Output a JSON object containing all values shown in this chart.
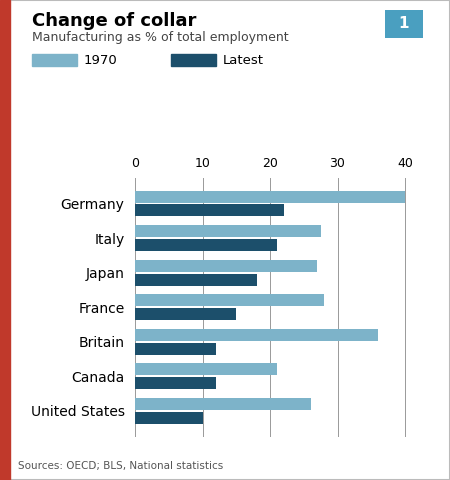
{
  "title": "Change of collar",
  "subtitle": "Manufacturing as % of total employment",
  "source": "Sources: OECD; BLS, National statistics",
  "legend_1970": "1970",
  "legend_latest": "Latest",
  "color_1970": "#7db3c9",
  "color_latest": "#1c4f6b",
  "color_border_left": "#c0392b",
  "color_num_box": "#4a9fc0",
  "color_outline": "#cccccc",
  "categories": [
    "Germany",
    "Italy",
    "Japan",
    "France",
    "Britain",
    "Canada",
    "United States"
  ],
  "values_1970": [
    40,
    27.5,
    27,
    28,
    36,
    21,
    26
  ],
  "values_latest": [
    22,
    21,
    18,
    15,
    12,
    12,
    10
  ],
  "xlim": [
    0,
    42
  ],
  "xticks": [
    0,
    10,
    20,
    30,
    40
  ],
  "background_color": "#ffffff",
  "grid_color": "#999999"
}
